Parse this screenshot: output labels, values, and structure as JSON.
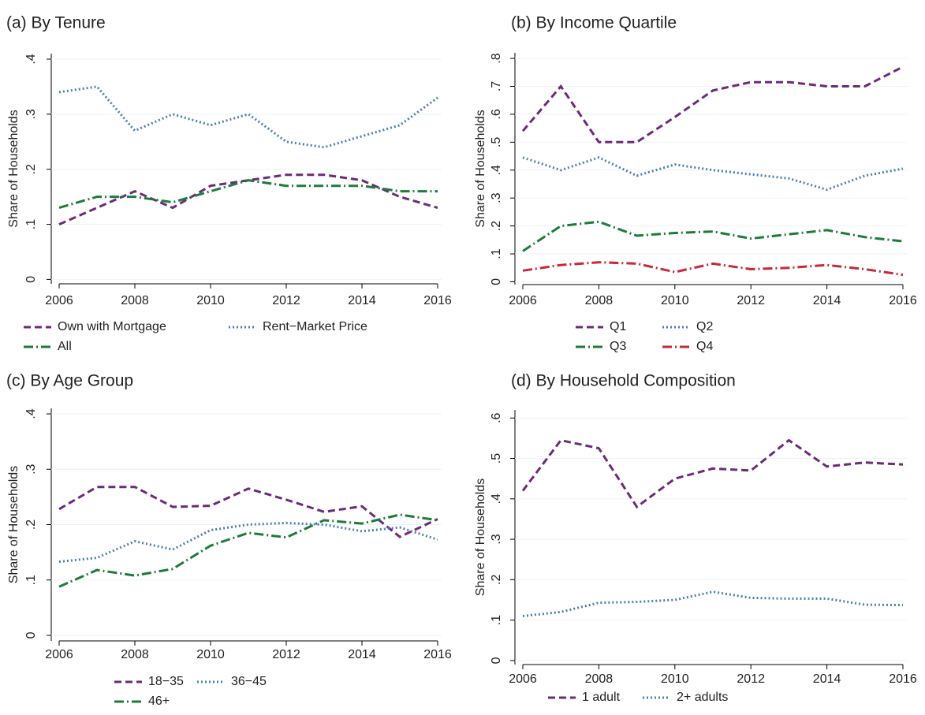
{
  "chart_data": [
    {
      "type": "line",
      "title": "(a) By Tenure",
      "y_label": "Share of Households",
      "x": [
        2006,
        2007,
        2008,
        2009,
        2010,
        2011,
        2012,
        2013,
        2014,
        2015,
        2016
      ],
      "xlim": [
        2006,
        2016
      ],
      "xticks": [
        2006,
        2008,
        2010,
        2012,
        2014,
        2016
      ],
      "ylim": [
        -0.008,
        0.41
      ],
      "yticks": [
        0,
        {
          "value": 0.1,
          "label": ".1"
        },
        {
          "value": 0.2,
          "label": ".2"
        },
        {
          "value": 0.3,
          "label": ".3"
        },
        {
          "value": 0.4,
          "label": ".4"
        }
      ],
      "grid": true,
      "legend": "bottom",
      "series": [
        {
          "name": "Own with Mortgage",
          "color": "#6b2a7a",
          "style": "dashed",
          "values": [
            0.1,
            0.13,
            0.16,
            0.13,
            0.17,
            0.18,
            0.19,
            0.19,
            0.18,
            0.15,
            0.13
          ]
        },
        {
          "name": "Rent−Market Price",
          "color": "#4a7ebb",
          "style": "dotted",
          "values": [
            0.34,
            0.35,
            0.27,
            0.3,
            0.28,
            0.3,
            0.25,
            0.24,
            0.26,
            0.28,
            0.33
          ]
        },
        {
          "name": "All",
          "color": "#1e7b3a",
          "style": "dashdot",
          "values": [
            0.13,
            0.15,
            0.15,
            0.14,
            0.16,
            0.18,
            0.17,
            0.17,
            0.17,
            0.16,
            0.16
          ]
        }
      ]
    },
    {
      "type": "line",
      "title": "(b) By Income Quartile",
      "y_label": "Share of Households",
      "x": [
        2006,
        2007,
        2008,
        2009,
        2010,
        2011,
        2012,
        2013,
        2014,
        2015,
        2016
      ],
      "xlim": [
        2006,
        2016
      ],
      "xticks": [
        2006,
        2008,
        2010,
        2012,
        2014,
        2016
      ],
      "ylim": [
        -0.01,
        0.82
      ],
      "yticks": [
        0,
        {
          "value": 0.1,
          "label": ".1"
        },
        {
          "value": 0.2,
          "label": ".2"
        },
        {
          "value": 0.3,
          "label": ".3"
        },
        {
          "value": 0.4,
          "label": ".4"
        },
        {
          "value": 0.5,
          "label": ".5"
        },
        {
          "value": 0.6,
          "label": ".6"
        },
        {
          "value": 0.7,
          "label": ".7"
        },
        {
          "value": 0.8,
          "label": ".8"
        }
      ],
      "grid": true,
      "legend": "bottom",
      "series": [
        {
          "name": "Q1",
          "color": "#6b2a7a",
          "style": "dashed",
          "values": [
            0.54,
            0.7,
            0.5,
            0.5,
            0.59,
            0.685,
            0.715,
            0.715,
            0.7,
            0.7,
            0.77
          ]
        },
        {
          "name": "Q2",
          "color": "#4a7ebb",
          "style": "dotted",
          "values": [
            0.445,
            0.4,
            0.445,
            0.38,
            0.42,
            0.4,
            0.385,
            0.37,
            0.33,
            0.38,
            0.405
          ]
        },
        {
          "name": "Q3",
          "color": "#1e7b3a",
          "style": "dashdot",
          "values": [
            0.11,
            0.2,
            0.215,
            0.165,
            0.175,
            0.18,
            0.155,
            0.17,
            0.185,
            0.16,
            0.145
          ]
        },
        {
          "name": "Q4",
          "color": "#c8283a",
          "style": "dashdot",
          "values": [
            0.04,
            0.06,
            0.07,
            0.065,
            0.035,
            0.065,
            0.045,
            0.05,
            0.06,
            0.045,
            0.025
          ]
        }
      ]
    },
    {
      "type": "line",
      "title": "(c) By Age Group",
      "y_label": "Share of Households",
      "x": [
        2006,
        2007,
        2008,
        2009,
        2010,
        2011,
        2012,
        2013,
        2014,
        2015,
        2016
      ],
      "xlim": [
        2006,
        2016
      ],
      "xticks": [
        2006,
        2008,
        2010,
        2012,
        2014,
        2016
      ],
      "ylim": [
        -0.01,
        0.41
      ],
      "yticks": [
        0,
        {
          "value": 0.1,
          "label": ".1"
        },
        {
          "value": 0.2,
          "label": ".2"
        },
        {
          "value": 0.3,
          "label": ".3"
        },
        {
          "value": 0.4,
          "label": ".4"
        }
      ],
      "grid": true,
      "legend": "bottom",
      "series": [
        {
          "name": "18−35",
          "color": "#6b2a7a",
          "style": "dashed",
          "values": [
            0.228,
            0.268,
            0.268,
            0.232,
            0.234,
            0.265,
            0.245,
            0.223,
            0.233,
            0.178,
            0.21
          ]
        },
        {
          "name": "36−45",
          "color": "#4a7ebb",
          "style": "dotted",
          "values": [
            0.133,
            0.14,
            0.17,
            0.155,
            0.19,
            0.2,
            0.203,
            0.2,
            0.188,
            0.195,
            0.173
          ]
        },
        {
          "name": "46+",
          "color": "#1e7b3a",
          "style": "dashdot",
          "values": [
            0.088,
            0.118,
            0.108,
            0.12,
            0.162,
            0.185,
            0.177,
            0.208,
            0.202,
            0.218,
            0.208
          ]
        }
      ]
    },
    {
      "type": "line",
      "title": "(d) By Household Composition",
      "y_label": "Share of Households",
      "x": [
        2006,
        2007,
        2008,
        2009,
        2010,
        2011,
        2012,
        2013,
        2014,
        2015,
        2016
      ],
      "xlim": [
        2006,
        2016
      ],
      "xticks": [
        2006,
        2008,
        2010,
        2012,
        2014,
        2016
      ],
      "ylim": [
        -0.01,
        0.62
      ],
      "yticks": [
        0,
        {
          "value": 0.1,
          "label": ".1"
        },
        {
          "value": 0.2,
          "label": ".2"
        },
        {
          "value": 0.3,
          "label": ".3"
        },
        {
          "value": 0.4,
          "label": ".4"
        },
        {
          "value": 0.5,
          "label": ".5"
        },
        {
          "value": 0.6,
          "label": ".6"
        }
      ],
      "grid": true,
      "legend": "bottom",
      "series": [
        {
          "name": "1 adult",
          "color": "#6b2a7a",
          "style": "dashed",
          "values": [
            0.42,
            0.545,
            0.525,
            0.38,
            0.45,
            0.475,
            0.47,
            0.545,
            0.48,
            0.49,
            0.485
          ]
        },
        {
          "name": "2+ adults",
          "color": "#4a7ebb",
          "style": "dotted",
          "values": [
            0.11,
            0.12,
            0.143,
            0.145,
            0.15,
            0.17,
            0.155,
            0.153,
            0.153,
            0.138,
            0.137
          ]
        }
      ]
    }
  ]
}
